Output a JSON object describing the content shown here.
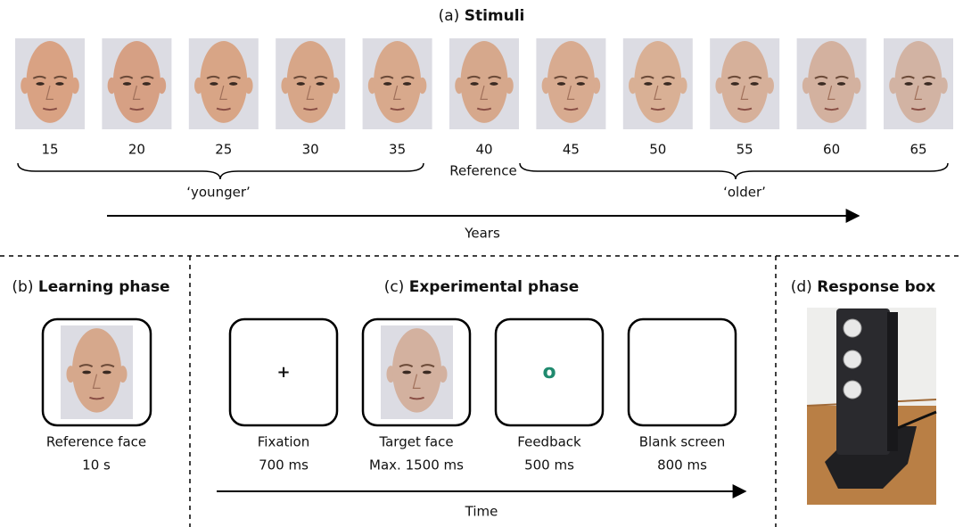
{
  "stimuli": {
    "label": "(a)",
    "title": "Stimuli",
    "ages": [
      15,
      20,
      25,
      30,
      35,
      40,
      45,
      50,
      55,
      60,
      65
    ],
    "reference": "Reference",
    "younger": "‘younger’",
    "older": "‘older’",
    "axis": "Years"
  },
  "learning": {
    "label": "(b)",
    "title": "Learning phase",
    "caption": "Reference face",
    "duration": "10 s"
  },
  "experimental": {
    "label": "(c)",
    "title": "Experimental phase",
    "steps": [
      {
        "symbol": "+",
        "name": "Fixation",
        "duration": "700 ms"
      },
      {
        "name": "Target face",
        "duration": "Max. 1500 ms"
      },
      {
        "symbol": "o",
        "name": "Feedback",
        "duration": "500 ms"
      },
      {
        "name": "Blank screen",
        "duration": "800 ms"
      }
    ],
    "axis": "Time"
  },
  "response": {
    "label": "(d)",
    "title": "Response box"
  }
}
